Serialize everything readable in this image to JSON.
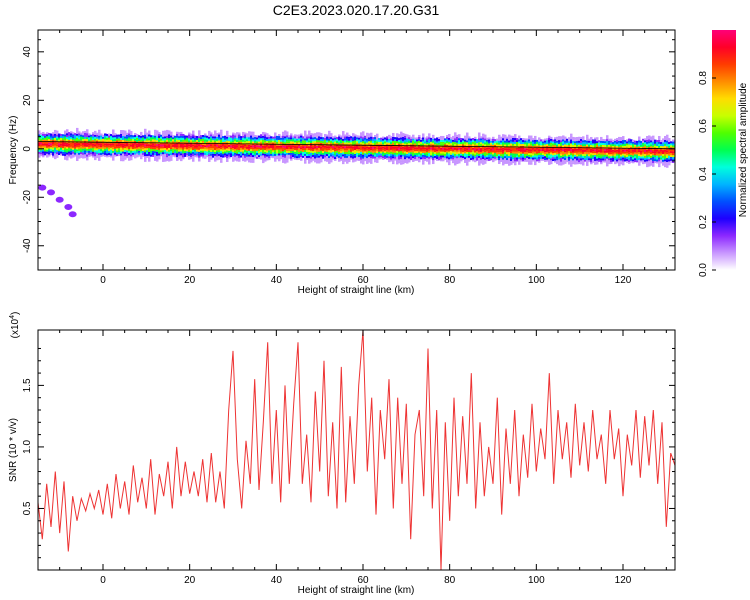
{
  "figure": {
    "title": "C2E3.2023.020.17.20.G31"
  },
  "chart_data": [
    {
      "type": "heatmap",
      "xlabel": "Height of straight line (km)",
      "ylabel": "Frequency (Hz)",
      "xlim": [
        -15,
        132
      ],
      "ylim": [
        -50,
        49
      ],
      "xticks": [
        0,
        20,
        40,
        60,
        80,
        100,
        120
      ],
      "yticks": [
        -40,
        -20,
        0,
        20,
        40
      ],
      "colorbar": {
        "label": "Normalized spectral amplitude",
        "range": [
          0,
          1
        ],
        "ticks": [
          "0.0",
          "0.2",
          "0.4",
          "0.6",
          "0.8"
        ],
        "tick_values": [
          0,
          0.2,
          0.4,
          0.6,
          0.8
        ],
        "colormap": [
          "#ffffff",
          "#c896ff",
          "#8c28ff",
          "#1e00ff",
          "#0050ff",
          "#00b4ff",
          "#00ffdc",
          "#00ff50",
          "#50ff00",
          "#c8ff00",
          "#ffdc00",
          "#ff8c00",
          "#ff3c00",
          "#ff0028",
          "#ff0078"
        ]
      },
      "band": {
        "center_freq_start": 2,
        "center_freq_end": -1,
        "outer_halfwidth": 4,
        "core_halfwidth": 1.5
      },
      "faint_patch": {
        "points": [
          [
            -14,
            -16
          ],
          [
            -12,
            -18
          ],
          [
            -10,
            -21
          ],
          [
            -8,
            -24
          ],
          [
            -7,
            -27
          ]
        ],
        "level": 0.15
      }
    },
    {
      "type": "line",
      "xlabel": "Height of straight line (km)",
      "ylabel": "SNR (10 * v/v)",
      "multiplier_label": "(x10",
      "multiplier_exp": "4",
      "multiplier_close": ")",
      "xlim": [
        -15,
        132
      ],
      "ylim": [
        0,
        1.95
      ],
      "xticks": [
        0,
        20,
        40,
        60,
        80,
        100,
        120
      ],
      "yticks": [
        0.5,
        1.0,
        1.5
      ],
      "ytick_labels": [
        "0.5",
        "1.0",
        "1.5"
      ],
      "line_color": "#ee3333",
      "series": [
        {
          "points": [
            [
              -15,
              0.55
            ],
            [
              -14,
              0.25
            ],
            [
              -13,
              0.7
            ],
            [
              -12,
              0.35
            ],
            [
              -11,
              0.8
            ],
            [
              -10,
              0.3
            ],
            [
              -9,
              0.72
            ],
            [
              -8,
              0.15
            ],
            [
              -7,
              0.6
            ],
            [
              -6,
              0.4
            ],
            [
              -5,
              0.58
            ],
            [
              -4,
              0.48
            ],
            [
              -3,
              0.62
            ],
            [
              -2,
              0.5
            ],
            [
              -1,
              0.65
            ],
            [
              0,
              0.45
            ],
            [
              1,
              0.7
            ],
            [
              2,
              0.42
            ],
            [
              3,
              0.78
            ],
            [
              4,
              0.5
            ],
            [
              5,
              0.72
            ],
            [
              6,
              0.45
            ],
            [
              7,
              0.85
            ],
            [
              8,
              0.55
            ],
            [
              9,
              0.75
            ],
            [
              10,
              0.5
            ],
            [
              11,
              0.9
            ],
            [
              12,
              0.45
            ],
            [
              13,
              0.78
            ],
            [
              14,
              0.6
            ],
            [
              15,
              0.88
            ],
            [
              16,
              0.5
            ],
            [
              17,
              1.0
            ],
            [
              18,
              0.6
            ],
            [
              19,
              0.88
            ],
            [
              20,
              0.62
            ],
            [
              21,
              0.8
            ],
            [
              22,
              0.6
            ],
            [
              23,
              0.9
            ],
            [
              24,
              0.55
            ],
            [
              25,
              0.95
            ],
            [
              26,
              0.55
            ],
            [
              27,
              0.8
            ],
            [
              28,
              0.5
            ],
            [
              29,
              1.3
            ],
            [
              30,
              1.78
            ],
            [
              31,
              0.9
            ],
            [
              32,
              0.5
            ],
            [
              33,
              1.05
            ],
            [
              34,
              0.7
            ],
            [
              35,
              1.55
            ],
            [
              36,
              0.65
            ],
            [
              37,
              1.2
            ],
            [
              38,
              1.85
            ],
            [
              39,
              0.7
            ],
            [
              40,
              1.3
            ],
            [
              41,
              0.55
            ],
            [
              42,
              1.5
            ],
            [
              43,
              0.7
            ],
            [
              44,
              1.35
            ],
            [
              45,
              1.85
            ],
            [
              46,
              0.7
            ],
            [
              47,
              1.1
            ],
            [
              48,
              0.55
            ],
            [
              49,
              1.45
            ],
            [
              50,
              0.8
            ],
            [
              51,
              1.7
            ],
            [
              52,
              0.6
            ],
            [
              53,
              1.2
            ],
            [
              54,
              0.5
            ],
            [
              55,
              1.65
            ],
            [
              56,
              0.55
            ],
            [
              57,
              1.25
            ],
            [
              58,
              0.7
            ],
            [
              59,
              1.5
            ],
            [
              60,
              1.95
            ],
            [
              61,
              0.8
            ],
            [
              62,
              1.4
            ],
            [
              63,
              0.45
            ],
            [
              64,
              1.3
            ],
            [
              65,
              0.9
            ],
            [
              66,
              1.55
            ],
            [
              67,
              0.5
            ],
            [
              68,
              1.4
            ],
            [
              69,
              0.7
            ],
            [
              70,
              1.35
            ],
            [
              71,
              0.25
            ],
            [
              72,
              1.1
            ],
            [
              73,
              1.3
            ],
            [
              74,
              0.6
            ],
            [
              75,
              1.8
            ],
            [
              76,
              0.5
            ],
            [
              77,
              1.3
            ],
            [
              78,
              0.0
            ],
            [
              79,
              1.2
            ],
            [
              80,
              0.4
            ],
            [
              81,
              1.4
            ],
            [
              82,
              0.6
            ],
            [
              83,
              1.25
            ],
            [
              84,
              0.7
            ],
            [
              85,
              1.6
            ],
            [
              86,
              0.5
            ],
            [
              87,
              1.2
            ],
            [
              88,
              0.6
            ],
            [
              89,
              1.0
            ],
            [
              90,
              0.7
            ],
            [
              91,
              1.4
            ],
            [
              92,
              0.45
            ],
            [
              93,
              1.15
            ],
            [
              94,
              0.7
            ],
            [
              95,
              1.3
            ],
            [
              96,
              0.6
            ],
            [
              97,
              1.1
            ],
            [
              98,
              0.75
            ],
            [
              99,
              1.35
            ],
            [
              100,
              0.8
            ],
            [
              101,
              1.15
            ],
            [
              102,
              0.9
            ],
            [
              103,
              1.6
            ],
            [
              104,
              0.7
            ],
            [
              105,
              1.3
            ],
            [
              106,
              0.9
            ],
            [
              107,
              1.2
            ],
            [
              108,
              0.75
            ],
            [
              109,
              1.35
            ],
            [
              110,
              0.85
            ],
            [
              111,
              1.2
            ],
            [
              112,
              0.8
            ],
            [
              113,
              1.3
            ],
            [
              114,
              0.9
            ],
            [
              115,
              1.1
            ],
            [
              116,
              0.7
            ],
            [
              117,
              1.3
            ],
            [
              118,
              0.9
            ],
            [
              119,
              1.15
            ],
            [
              120,
              0.6
            ],
            [
              121,
              1.1
            ],
            [
              122,
              0.85
            ],
            [
              123,
              1.3
            ],
            [
              124,
              0.75
            ],
            [
              125,
              1.25
            ],
            [
              126,
              0.85
            ],
            [
              127,
              1.3
            ],
            [
              128,
              0.7
            ],
            [
              129,
              1.2
            ],
            [
              130,
              0.35
            ],
            [
              131,
              0.95
            ],
            [
              132,
              0.85
            ]
          ]
        }
      ]
    }
  ]
}
